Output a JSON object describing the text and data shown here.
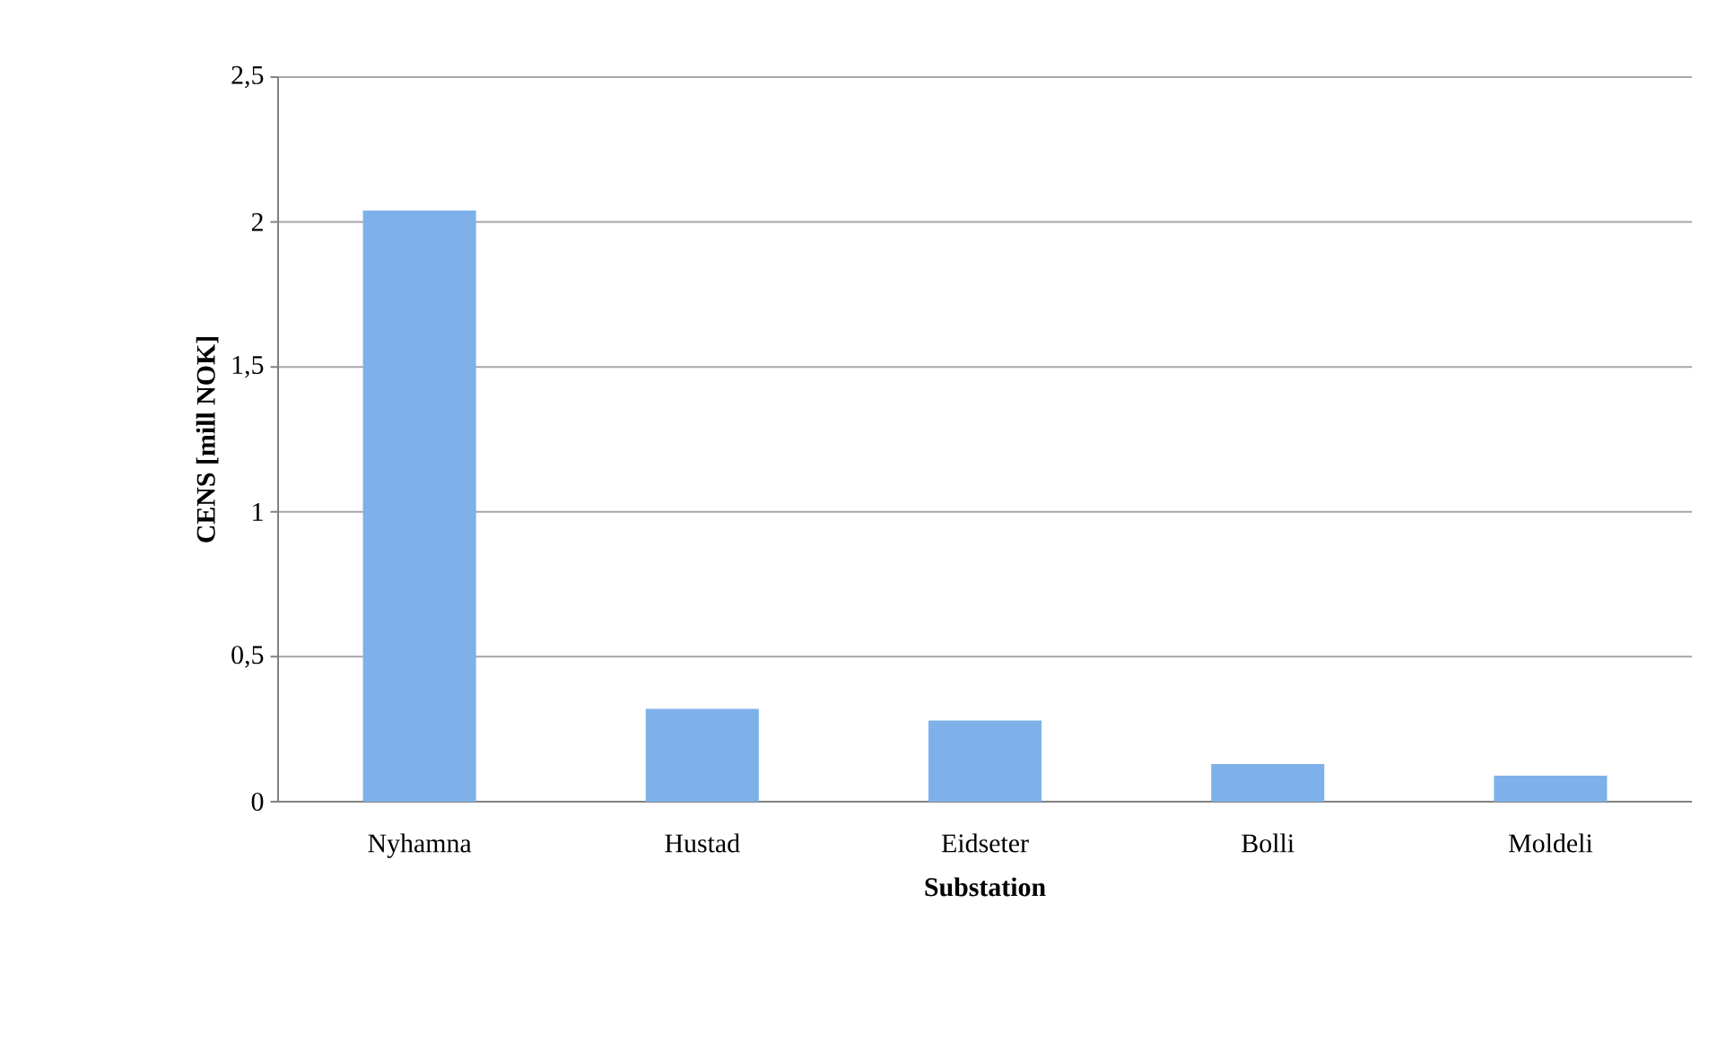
{
  "chart_data": {
    "type": "bar",
    "xlabel": "Substation",
    "ylabel": "CENS [mill NOK]",
    "categories": [
      "Nyhamna",
      "Hustad",
      "Eidseter",
      "Bolli",
      "Moldeli"
    ],
    "values": [
      2.04,
      0.32,
      0.28,
      0.13,
      0.09
    ],
    "color": "#7eb1ea",
    "ylim": [
      0,
      2.5
    ],
    "yticks": [
      0,
      {
        "value": 0.5,
        "label": "0,5"
      },
      1,
      {
        "value": 1.5,
        "label": "1,5"
      },
      2,
      {
        "value": 2.5,
        "label": "2,5"
      }
    ],
    "grid": "y"
  }
}
